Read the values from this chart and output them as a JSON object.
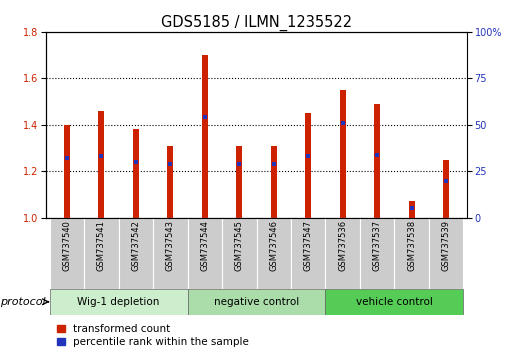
{
  "title": "GDS5185 / ILMN_1235522",
  "samples": [
    "GSM737540",
    "GSM737541",
    "GSM737542",
    "GSM737543",
    "GSM737544",
    "GSM737545",
    "GSM737546",
    "GSM737547",
    "GSM737536",
    "GSM737537",
    "GSM737538",
    "GSM737539"
  ],
  "transformed_counts": [
    1.4,
    1.46,
    1.38,
    1.31,
    1.7,
    1.31,
    1.31,
    1.45,
    1.55,
    1.49,
    1.07,
    1.25
  ],
  "percentile_ranks": [
    32,
    33,
    30,
    29,
    54,
    29,
    29,
    33,
    51,
    34,
    5,
    20
  ],
  "ylim_left": [
    1.0,
    1.8
  ],
  "ylim_right": [
    0,
    100
  ],
  "yticks_left": [
    1.0,
    1.2,
    1.4,
    1.6,
    1.8
  ],
  "yticks_right": [
    0,
    25,
    50,
    75,
    100
  ],
  "bar_color": "#cc2200",
  "percentile_color": "#2233bb",
  "groups": [
    {
      "label": "Wig-1 depletion",
      "start": 0,
      "end": 4,
      "color": "#cceecc"
    },
    {
      "label": "negative control",
      "start": 4,
      "end": 8,
      "color": "#aaddaa"
    },
    {
      "label": "vehicle control",
      "start": 8,
      "end": 12,
      "color": "#55cc55"
    }
  ],
  "sample_bg": "#cccccc",
  "protocol_label": "protocol",
  "legend_red": "transformed count",
  "legend_blue": "percentile rank within the sample",
  "bar_width": 0.18,
  "base": 1.0
}
